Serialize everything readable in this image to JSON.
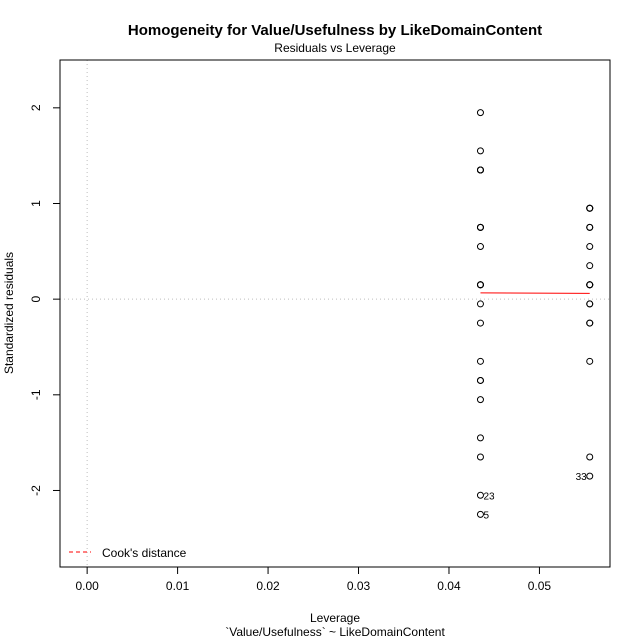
{
  "chart_data": {
    "type": "scatter",
    "title": "Homogeneity for Value/Usefulness by LikeDomainContent",
    "subtitle": "Residuals vs Leverage",
    "xlabel": "Leverage",
    "xlabel_sub": "`Value/Usefulness` ~ LikeDomainContent",
    "ylabel": "Standardized residuals",
    "xlim": [
      -0.003,
      0.0578
    ],
    "ylim": [
      -2.8,
      2.5
    ],
    "x_ticks": [
      0.0,
      0.01,
      0.02,
      0.03,
      0.04,
      0.05
    ],
    "x_tick_labels": [
      "0.00",
      "0.01",
      "0.02",
      "0.03",
      "0.04",
      "0.05"
    ],
    "y_ticks": [
      -2,
      -1,
      0,
      1,
      2
    ],
    "y_tick_labels": [
      "-2",
      "-1",
      "0",
      "1",
      "2"
    ],
    "grid": false,
    "reference_lines": {
      "x": 0,
      "y": 0,
      "style": "dotted"
    },
    "series": [
      {
        "x": [
          0.04348,
          0.04348,
          0.04348,
          0.04348,
          0.04348,
          0.04348,
          0.04348,
          0.04348,
          0.04348,
          0.04348,
          0.04348,
          0.04348,
          0.04348,
          0.04348,
          0.04348,
          0.04348,
          0.04348,
          0.04348,
          0.04348,
          0.04348,
          0.04348,
          0.04348,
          0.04348,
          0.05556,
          0.05556,
          0.05556,
          0.05556,
          0.05556,
          0.05556,
          0.05556,
          0.05556,
          0.05556,
          0.05556,
          0.05556,
          0.05556,
          0.05556,
          0.05556,
          0.05556,
          0.05556,
          0.05556,
          0.05556
        ],
        "y": [
          1.95,
          1.55,
          1.35,
          1.35,
          0.75,
          0.75,
          0.55,
          0.15,
          0.15,
          0.15,
          -0.05,
          -0.25,
          -0.65,
          -0.85,
          -0.85,
          -1.05,
          -1.45,
          -1.65,
          -2.05,
          -2.25,
          0.15,
          0.75,
          1.35,
          0.95,
          0.95,
          0.75,
          0.75,
          0.55,
          0.35,
          0.15,
          0.15,
          0.15,
          -0.05,
          -0.05,
          -0.25,
          -0.25,
          -0.65,
          -1.65,
          -1.85,
          0.15,
          0.95
        ]
      }
    ],
    "point_labels": [
      {
        "x": 0.04348,
        "y": -2.05,
        "text": "23",
        "side": "right"
      },
      {
        "x": 0.04348,
        "y": -2.25,
        "text": "5",
        "side": "right"
      },
      {
        "x": 0.05556,
        "y": -1.85,
        "text": "33",
        "side": "left"
      }
    ],
    "smooth_line": {
      "color": "#ff0000",
      "x": [
        0.04348,
        0.05556
      ],
      "y": [
        0.065,
        0.06
      ]
    },
    "legend": {
      "position": "bottom-left",
      "entries": [
        {
          "label": "Cook's distance",
          "color": "#ff0000",
          "style": "dashed"
        }
      ]
    }
  }
}
